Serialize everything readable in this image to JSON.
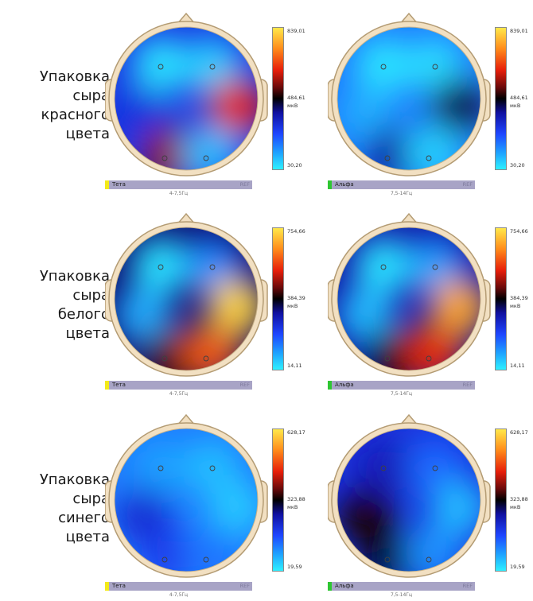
{
  "rows": [
    {
      "label_lines": [
        "Упаковка",
        "сыра",
        "красного",
        "цвета"
      ],
      "panels": [
        {
          "scale_max": "839,01",
          "scale_mid": "484,61",
          "scale_min": "30,20",
          "unit": "мкВ",
          "band": "Тета",
          "band_color": "#f3ea1a",
          "ref": "REF",
          "freq": "4-7,5Гц",
          "levels": [
            0.02,
            0.05,
            0.3,
            0.7,
            0.62,
            0.08
          ]
        },
        {
          "scale_max": "839,01",
          "scale_mid": "484,61",
          "scale_min": "30,20",
          "unit": "мкВ",
          "band": "Альфа",
          "band_color": "#2ec632",
          "ref": "REF",
          "freq": "7,5-14Гц",
          "levels": [
            0.02,
            0.03,
            0.1,
            0.45,
            0.4,
            0.05
          ]
        }
      ]
    },
    {
      "label_lines": [
        "Упаковка",
        "сыра",
        "белого",
        "цвета"
      ],
      "panels": [
        {
          "scale_max": "754,66",
          "scale_mid": "384,39",
          "scale_min": "14,11",
          "unit": "мкВ",
          "band": "Тета",
          "band_color": "#f3ea1a",
          "ref": "REF",
          "freq": "4-7,5Гц",
          "levels": [
            0.02,
            0.15,
            0.1,
            0.97,
            0.55,
            0.78
          ]
        },
        {
          "scale_max": "754,66",
          "scale_mid": "384,39",
          "scale_min": "14,11",
          "unit": "мкВ",
          "band": "Альфа",
          "band_color": "#2ec632",
          "ref": "REF",
          "freq": "7,5-14Гц",
          "levels": [
            0.02,
            0.12,
            0.08,
            0.9,
            0.5,
            0.72
          ]
        }
      ]
    },
    {
      "label_lines": [
        "Упаковка",
        "сыра",
        "синего",
        "цвета"
      ],
      "panels": [
        {
          "scale_max": "628,17",
          "scale_mid": "323,88",
          "scale_min": "19,59",
          "unit": "мкВ",
          "band": "Тета",
          "band_color": "#f3ea1a",
          "ref": "REF",
          "freq": "4-7,5Гц",
          "levels": [
            0.12,
            0.08,
            0.32,
            0.06,
            0.28,
            0.18
          ]
        },
        {
          "scale_max": "628,17",
          "scale_mid": "323,88",
          "scale_min": "19,59",
          "unit": "мкВ",
          "band": "Альфа",
          "band_color": "#2ec632",
          "ref": "REF",
          "freq": "7,5-14Гц",
          "levels": [
            0.36,
            0.2,
            0.52,
            0.08,
            0.5,
            0.14
          ]
        }
      ]
    }
  ]
}
